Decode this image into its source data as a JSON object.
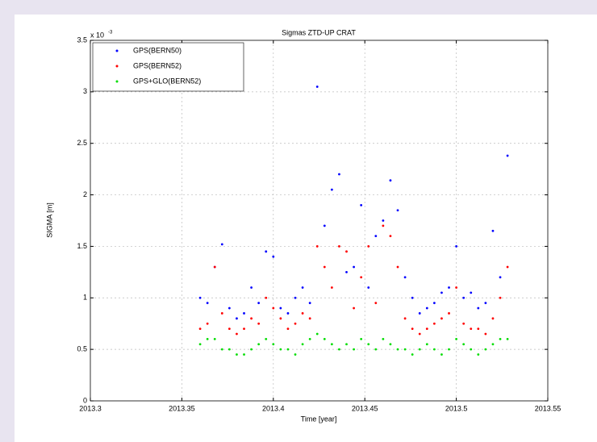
{
  "chart_data": {
    "type": "scatter",
    "title": "Sigmas ZTD-UP CRAT",
    "xlabel": "Time [year]",
    "ylabel": "SIGMA [m]",
    "y_multiplier": "x 10",
    "y_exponent": "-3",
    "x": [
      2013.36,
      2013.364,
      2013.368,
      2013.372,
      2013.376,
      2013.38,
      2013.384,
      2013.388,
      2013.392,
      2013.396,
      2013.4,
      2013.404,
      2013.408,
      2013.412,
      2013.416,
      2013.42,
      2013.424,
      2013.428,
      2013.432,
      2013.436,
      2013.44,
      2013.444,
      2013.448,
      2013.452,
      2013.456,
      2013.46,
      2013.464,
      2013.468,
      2013.472,
      2013.476,
      2013.48,
      2013.484,
      2013.488,
      2013.492,
      2013.496,
      2013.5,
      2013.504,
      2013.508,
      2013.512,
      2013.516,
      2013.52,
      2013.524,
      2013.528
    ],
    "series": [
      {
        "name": "GPS(BERN50)",
        "color": "#0000ff",
        "values": [
          1.0,
          0.95,
          1.3,
          1.52,
          0.9,
          0.8,
          0.85,
          1.1,
          0.95,
          1.45,
          1.4,
          0.9,
          0.85,
          1.0,
          1.1,
          0.95,
          3.05,
          1.7,
          2.05,
          2.2,
          1.25,
          1.3,
          1.9,
          1.1,
          1.6,
          1.75,
          2.14,
          1.85,
          1.2,
          1.0,
          0.85,
          0.9,
          0.95,
          1.05,
          1.1,
          1.5,
          1.0,
          1.05,
          0.9,
          0.95,
          1.65,
          1.2,
          2.38
        ]
      },
      {
        "name": "GPS(BERN52)",
        "color": "#ff0000",
        "values": [
          0.7,
          0.75,
          1.3,
          0.85,
          0.7,
          0.65,
          0.7,
          0.8,
          0.75,
          1.0,
          0.9,
          0.8,
          0.7,
          0.75,
          0.85,
          0.8,
          1.5,
          1.3,
          1.1,
          1.5,
          1.45,
          0.9,
          1.2,
          1.5,
          0.95,
          1.7,
          1.6,
          1.3,
          0.8,
          0.7,
          0.65,
          0.7,
          0.75,
          0.8,
          0.85,
          1.1,
          0.75,
          0.7,
          0.7,
          0.65,
          0.8,
          1.0,
          1.3
        ]
      },
      {
        "name": "GPS+GLO(BERN52)",
        "color": "#00dd00",
        "values": [
          0.55,
          0.6,
          0.6,
          0.5,
          0.5,
          0.45,
          0.45,
          0.5,
          0.55,
          0.6,
          0.55,
          0.5,
          0.5,
          0.45,
          0.55,
          0.6,
          0.65,
          0.6,
          0.55,
          0.5,
          0.55,
          0.5,
          0.6,
          0.55,
          0.5,
          0.6,
          0.55,
          0.5,
          0.5,
          0.45,
          0.5,
          0.55,
          0.5,
          0.45,
          0.5,
          0.6,
          0.55,
          0.5,
          0.45,
          0.5,
          0.55,
          0.6,
          0.6
        ]
      }
    ],
    "xlim": [
      2013.3,
      2013.55
    ],
    "xticks": [
      2013.3,
      2013.35,
      2013.4,
      2013.45,
      2013.5,
      2013.55
    ],
    "ylim": [
      0,
      3.5
    ],
    "yticks": [
      0,
      0.5,
      1,
      1.5,
      2,
      2.5,
      3,
      3.5
    ],
    "grid": true,
    "legend": "upper left"
  }
}
